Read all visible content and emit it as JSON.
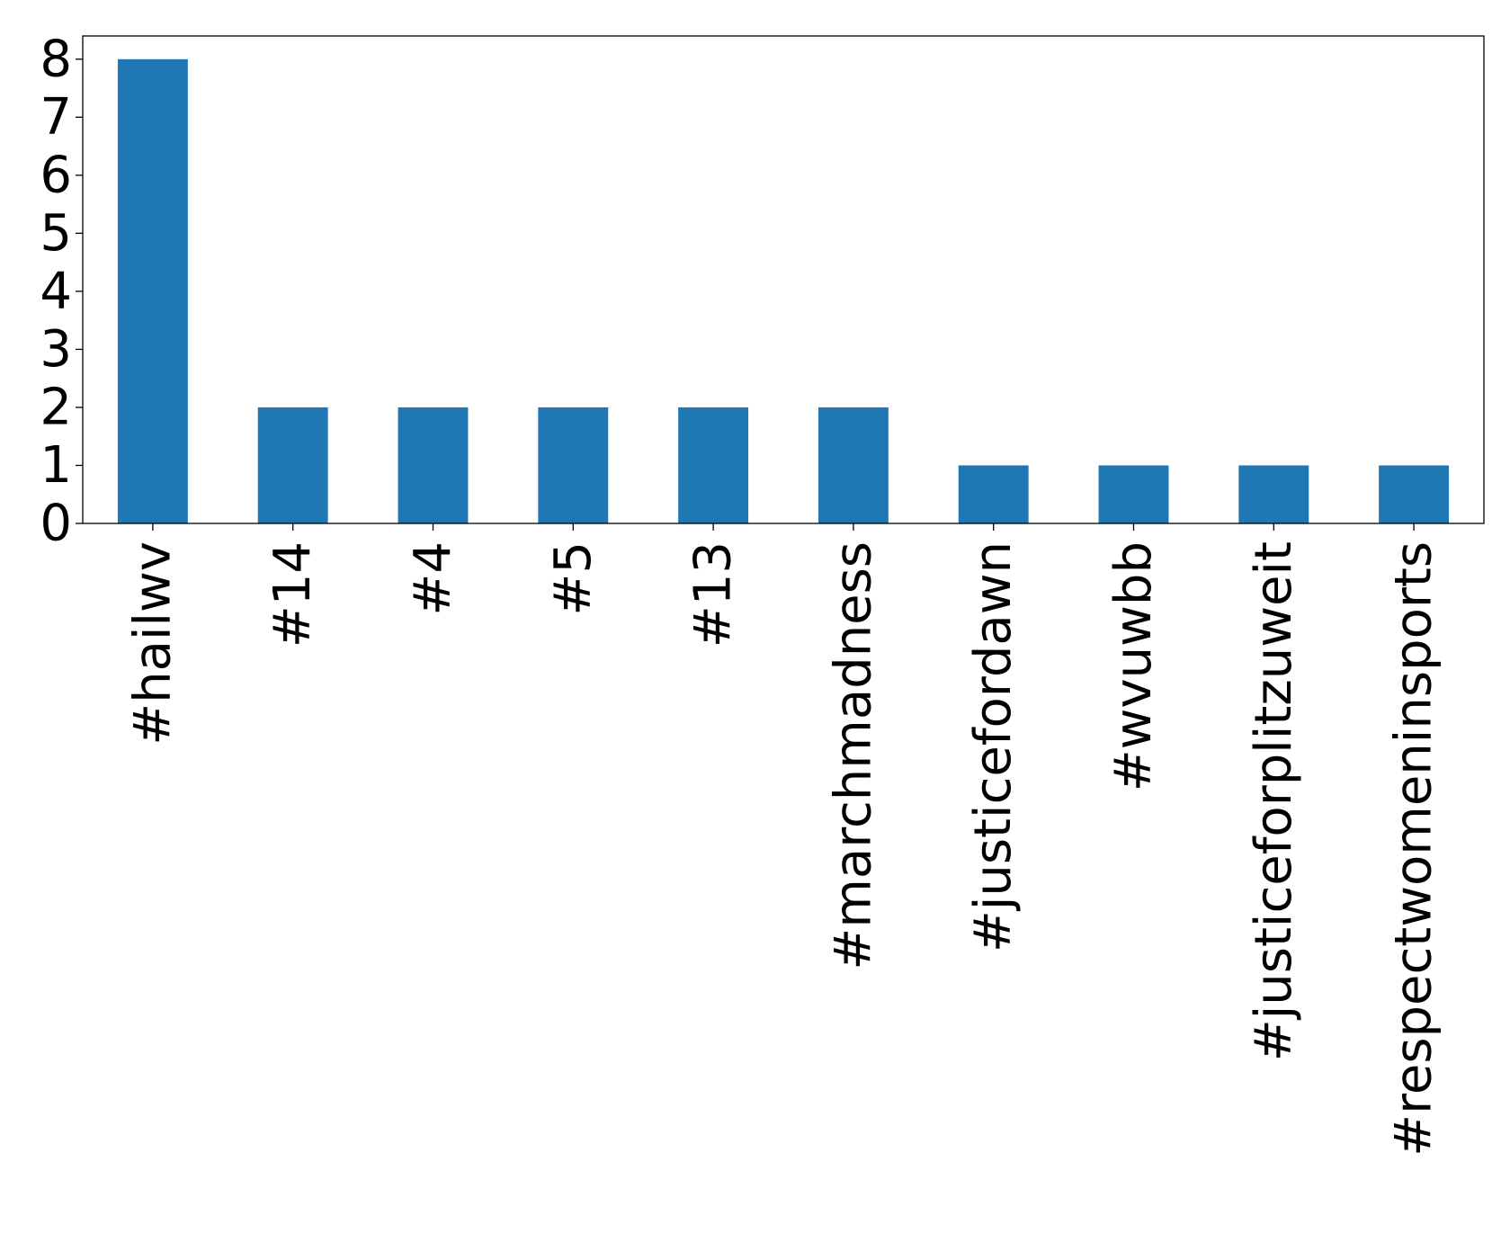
{
  "chart_data": {
    "type": "bar",
    "title": "",
    "xlabel": "",
    "ylabel": "",
    "categories": [
      "#hailwv",
      "#14",
      "#4",
      "#5",
      "#13",
      "#marchmadness",
      "#justicefordawn",
      "#wvuwbb",
      "#justiceforplitzuweit",
      "#respectwomeninsports"
    ],
    "values": [
      8,
      2,
      2,
      2,
      2,
      2,
      1,
      1,
      1,
      1
    ],
    "ylim": [
      0,
      8.4
    ],
    "yticks": [
      "0",
      "1",
      "2",
      "3",
      "4",
      "5",
      "6",
      "7",
      "8"
    ],
    "xtick_rotation": "vertical",
    "grid": false,
    "legend": "none",
    "bar_color": "#1f77b4"
  }
}
